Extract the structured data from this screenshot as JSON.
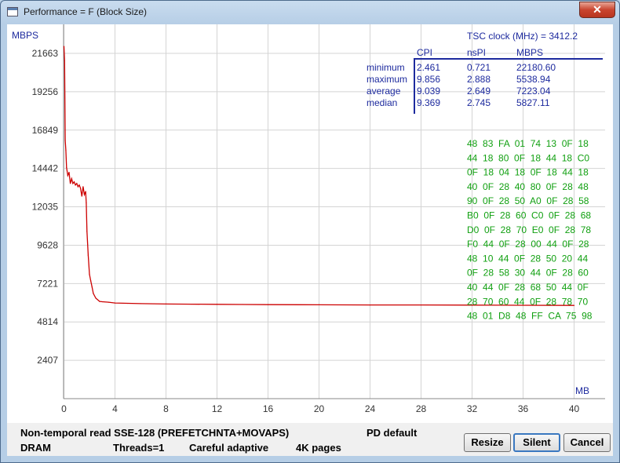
{
  "window": {
    "title": "Performance = F (Block Size)",
    "close_glyph": "✕"
  },
  "chart_data": {
    "type": "line",
    "ylabel": "MBPS",
    "xlabel": "MB",
    "yticks": [
      2407,
      4814,
      7221,
      9628,
      12035,
      14442,
      16849,
      19256,
      21663
    ],
    "xticks": [
      0,
      4,
      8,
      12,
      16,
      20,
      24,
      28,
      32,
      36,
      40
    ],
    "ylim": [
      0,
      24070
    ],
    "xlim": [
      0,
      44
    ],
    "grid": true,
    "series": [
      {
        "color": "#cc0000",
        "x": [
          0,
          0.05,
          0.1,
          0.15,
          0.2,
          0.3,
          0.4,
          0.5,
          0.6,
          0.7,
          0.8,
          0.9,
          1.0,
          1.1,
          1.2,
          1.3,
          1.4,
          1.5,
          1.6,
          1.7,
          1.75,
          1.8,
          1.9,
          2.0,
          2.1,
          2.2,
          2.3,
          2.5,
          2.8,
          3.0,
          3.5,
          4.0,
          5,
          6,
          8,
          10,
          12,
          14,
          16,
          20,
          24,
          28,
          32,
          36,
          40
        ],
        "y": [
          22100,
          21200,
          16200,
          15600,
          14500,
          14000,
          14200,
          13500,
          13800,
          13500,
          13600,
          13400,
          13500,
          13300,
          13400,
          13200,
          12700,
          13300,
          12800,
          13000,
          12300,
          10500,
          9000,
          7800,
          7400,
          7000,
          6600,
          6300,
          6100,
          6080,
          6050,
          6000,
          5980,
          5960,
          5940,
          5930,
          5920,
          5910,
          5900,
          5890,
          5880,
          5880,
          5870,
          5860,
          5850
        ]
      }
    ],
    "stats_panel": {
      "tsc_label": "TSC clock (MHz)  = 3412.2",
      "columns": [
        "CPI",
        "nsPI",
        "MBPS"
      ],
      "rows": [
        {
          "label": "minimum",
          "cpi": "2.461",
          "nspi": "0.721",
          "mbps": "22180.60"
        },
        {
          "label": "maximum",
          "cpi": "9.856",
          "nspi": "2.888",
          "mbps": "5538.94"
        },
        {
          "label": "average",
          "cpi": "9.039",
          "nspi": "2.649",
          "mbps": "7223.04"
        },
        {
          "label": "median",
          "cpi": "9.369",
          "nspi": "2.745",
          "mbps": "5827.11"
        }
      ]
    },
    "hex_dump": [
      "48  83  FA  01  74  13  0F  18",
      "44  18  80  0F  18  44  18  C0",
      "0F  18  04  18  0F  18  44  18",
      "40  0F  28  40  80  0F  28  48",
      "90  0F  28  50  A0  0F  28  58",
      "B0  0F  28  60  C0  0F  28  68",
      "D0  0F  28  70  E0  0F  28  78",
      "F0  44  0F  28  00  44  0F  28",
      "48  10  44  0F  28  50  20  44",
      "0F  28  58  30  44  0F  28  60",
      "40  44  0F  28  68  50  44  0F",
      "28  70  60  44  0F  28  78  70",
      "48  01  D8  48  FF  CA  75  98"
    ]
  },
  "status": {
    "line1": "Non-temporal read SSE-128 (PREFETCHNTA+MOVAPS)",
    "pd": "PD default",
    "memory": "DRAM",
    "threads": "Threads=1",
    "mode": "Careful adaptive",
    "pages": "4K pages"
  },
  "buttons": {
    "resize": "Resize",
    "silent": "Silent",
    "cancel": "Cancel"
  }
}
